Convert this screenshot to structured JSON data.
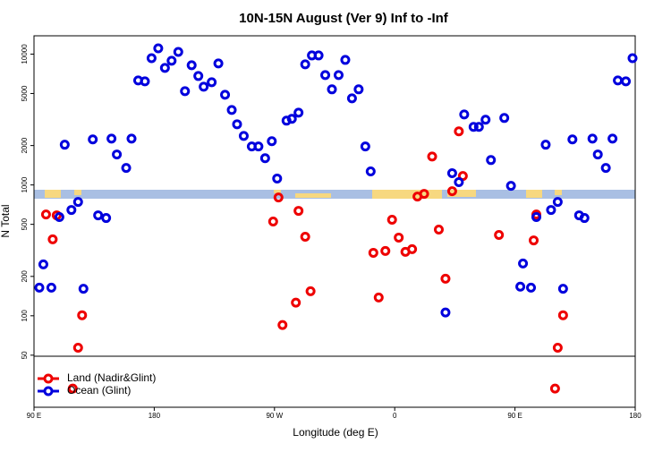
{
  "chart_data": {
    "type": "scatter",
    "title": "10N-15N August (Ver 9)   Inf to -Inf",
    "xlabel": "Longitude (deg E)",
    "ylabel": "N Total",
    "log_y": true,
    "xlim": [
      90,
      540
    ],
    "ylim": [
      20,
      13800
    ],
    "xticks": [
      {
        "value": 90,
        "label": "90 E"
      },
      180,
      {
        "value": 270,
        "label": "90 W"
      },
      {
        "value": 360,
        "label": "0"
      },
      {
        "value": 450,
        "label": "90 E"
      },
      {
        "value": 540,
        "label": "180"
      }
    ],
    "yticks": [
      50,
      100,
      200,
      500,
      1000,
      2000,
      5000,
      10000
    ],
    "legend": "bottom-left",
    "series": [
      {
        "name": "Land (Nadir&Glint)",
        "color": "#ee0000",
        "x": [
          99,
          104,
          107,
          119,
          123,
          126,
          269,
          273,
          276,
          286,
          288,
          293,
          297,
          344,
          348,
          353,
          358,
          363,
          368,
          373,
          377,
          382,
          388,
          393,
          398,
          403,
          408,
          411,
          438,
          464,
          466,
          480,
          482,
          486
        ],
        "values": [
          595,
          384,
          586,
          27.8,
          57,
          101,
          525,
          802,
          85,
          126,
          634,
          402,
          154,
          303,
          138,
          313,
          542,
          396,
          308,
          323,
          815,
          855,
          1650,
          456,
          192,
          896,
          2570,
          1170,
          415,
          377,
          595,
          27.8,
          57,
          101
        ]
      },
      {
        "name": "Ocean (Glint)",
        "color": "#0000dd",
        "x": [
          94,
          97,
          103,
          109,
          113,
          118,
          123,
          127,
          134,
          138,
          144,
          148,
          152,
          159,
          163,
          168,
          173,
          178,
          183,
          188,
          193,
          198,
          203,
          208,
          213,
          217,
          223,
          228,
          233,
          238,
          242,
          247,
          253,
          258,
          263,
          268,
          272,
          279,
          283,
          288,
          293,
          298,
          303,
          308,
          313,
          318,
          323,
          328,
          333,
          338,
          342,
          398,
          403,
          408,
          412,
          419,
          423,
          428,
          432,
          442,
          447,
          454,
          456,
          462,
          466,
          473,
          477,
          482,
          486,
          493,
          498,
          502,
          508,
          512,
          518,
          523,
          527,
          533,
          538
        ],
        "values": [
          164,
          247,
          164,
          568,
          2030,
          644,
          742,
          161,
          2230,
          586,
          559,
          2260,
          1710,
          1350,
          2260,
          6290,
          6190,
          9310,
          11070,
          7840,
          8890,
          10400,
          5210,
          8220,
          6800,
          5630,
          6100,
          8480,
          4890,
          3740,
          2910,
          2370,
          1970,
          1970,
          1600,
          2160,
          1120,
          3100,
          3200,
          3570,
          8350,
          9770,
          9770,
          6910,
          5380,
          6910,
          9030,
          4590,
          5380,
          1970,
          1270,
          106,
          1230,
          1050,
          3460,
          2780,
          2780,
          3150,
          1550,
          3250,
          985,
          167,
          251,
          164,
          568,
          2030,
          644,
          742,
          161,
          2230,
          586,
          559,
          2260,
          1710,
          1350,
          2260,
          6290,
          6190,
          9310
        ]
      }
    ]
  }
}
